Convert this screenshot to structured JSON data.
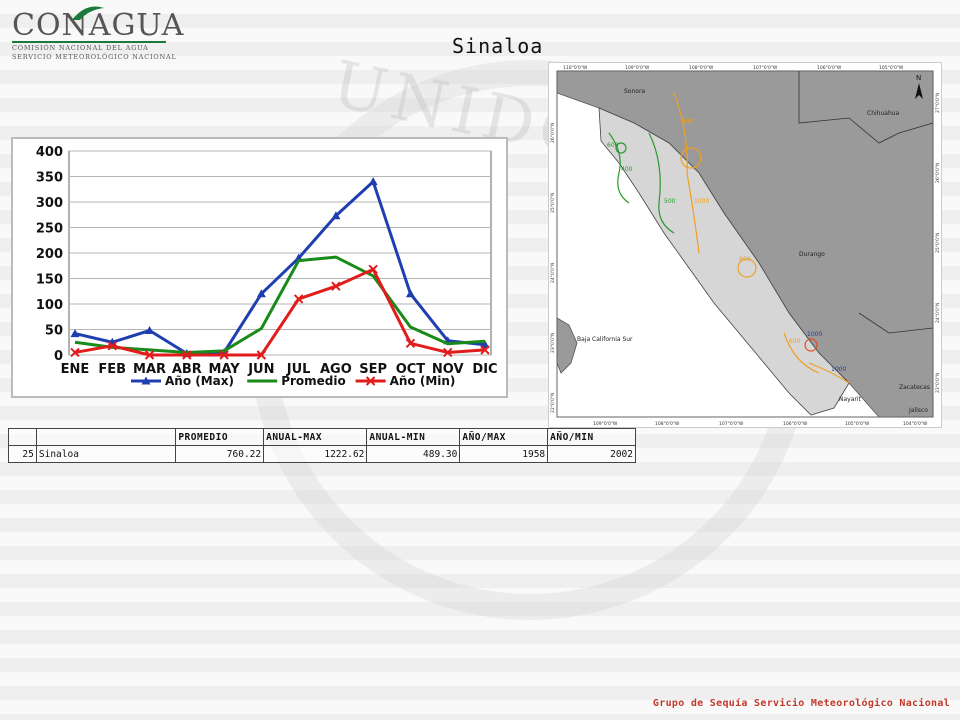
{
  "logo": {
    "word": "CONAGUA",
    "line1": "COMISIÓN NACIONAL DEL AGUA",
    "line2": "SERVICIO METEOROLÓGICO NACIONAL"
  },
  "title": "Sinaloa",
  "chart_data": {
    "type": "line",
    "categories": [
      "ENE",
      "FEB",
      "MAR",
      "ABR",
      "MAY",
      "JUN",
      "JUL",
      "AGO",
      "SEP",
      "OCT",
      "NOV",
      "DIC"
    ],
    "ylim": [
      0,
      400
    ],
    "yticks": [
      0,
      50,
      100,
      150,
      200,
      250,
      300,
      350,
      400
    ],
    "series": [
      {
        "name": "Año (Max)",
        "color": "#1f3fb0",
        "marker": "triangle",
        "values": [
          42,
          25,
          48,
          3,
          5,
          120,
          190,
          273,
          340,
          120,
          28,
          20
        ]
      },
      {
        "name": "Promedio",
        "color": "#1a8a1a",
        "marker": "none",
        "values": [
          25,
          15,
          10,
          5,
          8,
          52,
          185,
          192,
          155,
          55,
          22,
          27
        ]
      },
      {
        "name": "Año (Min)",
        "color": "#e21b1b",
        "marker": "x",
        "values": [
          5,
          18,
          0,
          0,
          0,
          0,
          110,
          135,
          168,
          23,
          5,
          10
        ]
      }
    ],
    "legend_position": "bottom"
  },
  "map": {
    "top_lon_labels": [
      "110°0'0\"W",
      "109°0'0\"W",
      "108°0'0\"W",
      "107°0'0\"W",
      "106°0'0\"W",
      "105°0'0\"W"
    ],
    "bottom_lon_labels": [
      "109°0'0\"W",
      "108°0'0\"W",
      "107°0'0\"W",
      "106°0'0\"W",
      "105°0'0\"W",
      "104°0'0\"W"
    ],
    "left_lat_labels": [
      "26°0'0\"N",
      "25°0'0\"N",
      "24°0'0\"N",
      "23°0'0\"N",
      "22°0'0\"N"
    ],
    "right_lat_labels": [
      "27°0'0\"N",
      "26°0'0\"N",
      "25°0'0\"N",
      "24°0'0\"N",
      "23°0'0\"N"
    ],
    "places": {
      "sonora": "Sonora",
      "chihuahua": "Chihuahua",
      "durango": "Durango",
      "bcs": "Baja California Sur",
      "zacatecas": "Zacatecas",
      "nayarit": "Nayarit",
      "jalisco": "Jalisco"
    },
    "isolines": [
      "400",
      "600",
      "600",
      "500",
      "400",
      "800",
      "1000",
      "800",
      "600",
      "800",
      "1000",
      "1000"
    ],
    "north": "N"
  },
  "table": {
    "headers": [
      "",
      "",
      "PROMEDIO",
      "ANUAL-MAX",
      "ANUAL-MIN",
      "AÑO/MAX",
      "AÑO/MIN"
    ],
    "row": [
      "25",
      "Sinaloa",
      "760.22",
      "1222.62",
      "489.30",
      "1958",
      "2002"
    ]
  },
  "footer": "Grupo de Sequía Servicio Meteorológico Nacional"
}
